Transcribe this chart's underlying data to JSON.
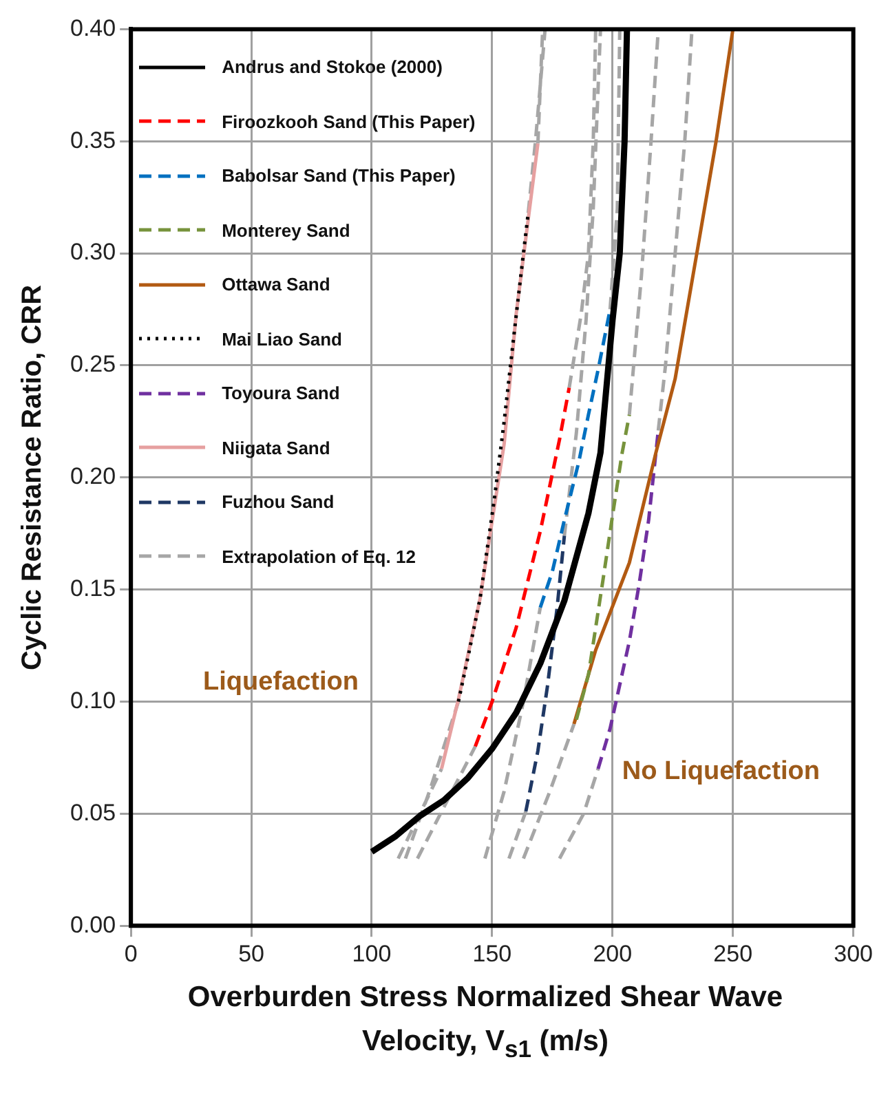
{
  "chart_data": {
    "type": "line",
    "xlabel": "Overburden Stress Normalized Shear Wave Velocity, V$_{s1}$ (m/s)",
    "ylabel": "Cyclic Resistance Ratio, CRR",
    "xlim": [
      0,
      300
    ],
    "xticks": [
      0,
      50,
      100,
      150,
      200,
      250,
      300
    ],
    "ylim": [
      0,
      0.4
    ],
    "yticks": [
      {
        "value": 0,
        "label": "0.00"
      },
      {
        "value": 0.05,
        "label": "0.05"
      },
      {
        "value": 0.1,
        "label": "0.10"
      },
      {
        "value": 0.15,
        "label": "0.15"
      },
      {
        "value": 0.2,
        "label": "0.20"
      },
      {
        "value": 0.25,
        "label": "0.25"
      },
      {
        "value": 0.3,
        "label": "0.30"
      },
      {
        "value": 0.35,
        "label": "0.35"
      },
      {
        "value": 0.4,
        "label": "0.40"
      }
    ],
    "grid": true,
    "legend": "top left",
    "annotations": [
      "Liquefaction",
      "No Liquefaction"
    ],
    "series": [
      {
        "name": "Andrus and Stokoe (2000)",
        "color": "#000000",
        "line_style": "solid",
        "x": [
          100,
          110,
          120,
          130,
          140,
          150,
          160,
          170,
          180,
          190,
          195,
          200,
          203,
          205,
          206
        ],
        "values": [
          0.033,
          0.04,
          0.049,
          0.056,
          0.066,
          0.079,
          0.095,
          0.117,
          0.145,
          0.184,
          0.211,
          0.27,
          0.3,
          0.35,
          0.4
        ]
      },
      {
        "name": "Firoozkooh Sand (This Paper)",
        "color": "#ff0000",
        "line_style": "dashed",
        "x": [
          143,
          150,
          160,
          170,
          178,
          182
        ],
        "values": [
          0.08,
          0.1,
          0.133,
          0.176,
          0.217,
          0.24
        ]
      },
      {
        "name": "Babolsar Sand (This Paper)",
        "color": "#0070c0",
        "line_style": "dashed",
        "x": [
          170,
          175,
          180,
          186,
          190,
          194,
          199
        ],
        "values": [
          0.142,
          0.158,
          0.181,
          0.207,
          0.228,
          0.248,
          0.275
        ]
      },
      {
        "name": "Monterey Sand",
        "color": "#77933c",
        "line_style": "dashed",
        "x": [
          185,
          190,
          196,
          200,
          204,
          207
        ],
        "values": [
          0.092,
          0.112,
          0.154,
          0.183,
          0.211,
          0.228
        ]
      },
      {
        "name": "Ottawa Sand",
        "color": "#b25a12",
        "line_style": "solid",
        "x": [
          184,
          193,
          207,
          218,
          226,
          235,
          243,
          250
        ],
        "values": [
          0.09,
          0.123,
          0.162,
          0.211,
          0.244,
          0.3,
          0.35,
          0.4
        ]
      },
      {
        "name": "Mai Liao Sand",
        "color": "#000000",
        "line_style": "dotted",
        "x": [
          136,
          140,
          145,
          151,
          155,
          159,
          163,
          165
        ],
        "values": [
          0.1,
          0.12,
          0.146,
          0.191,
          0.225,
          0.263,
          0.3,
          0.318
        ]
      },
      {
        "name": "Toyoura Sand",
        "color": "#7030a0",
        "line_style": "dashed",
        "x": [
          194,
          199,
          207,
          211,
          215,
          219
        ],
        "values": [
          0.07,
          0.088,
          0.127,
          0.152,
          0.181,
          0.221
        ]
      },
      {
        "name": "Niigata Sand",
        "color": "#e6a0a0",
        "line_style": "solid",
        "x": [
          129,
          136,
          145,
          155,
          160,
          169
        ],
        "values": [
          0.07,
          0.101,
          0.146,
          0.215,
          0.273,
          0.349
        ]
      },
      {
        "name": "Fuzhou Sand",
        "color": "#1f3864",
        "line_style": "dashed",
        "x": [
          164,
          169,
          173,
          177,
          180
        ],
        "values": [
          0.051,
          0.078,
          0.107,
          0.142,
          0.174
        ]
      },
      {
        "name": "Extrapolation of Eq. 12",
        "color": "#a6a6a6",
        "line_style": "dashed",
        "x": [
          165,
          168,
          172,
          null,
          169,
          171,
          null,
          182,
          187,
          190,
          192,
          193,
          null,
          180,
          185,
          189,
          192,
          195,
          null,
          199,
          202,
          203,
          null,
          207,
          212,
          216,
          219,
          null,
          219,
          222,
          226,
          230,
          233,
          null,
          111,
          120,
          129,
          null,
          114,
          124,
          136,
          null,
          119,
          130,
          143,
          null,
          147,
          155,
          163,
          170,
          null,
          157,
          164,
          null,
          163,
          174,
          184,
          null,
          178,
          188,
          194
        ],
        "values": [
          0.318,
          0.35,
          0.4,
          null,
          0.349,
          0.4,
          null,
          0.24,
          0.273,
          0.3,
          0.35,
          0.4,
          null,
          0.174,
          0.22,
          0.27,
          0.32,
          0.4,
          null,
          0.275,
          0.32,
          0.4,
          null,
          0.228,
          0.29,
          0.35,
          0.4,
          null,
          0.221,
          0.25,
          0.3,
          0.35,
          0.4,
          null,
          0.03,
          0.05,
          0.07,
          null,
          0.03,
          0.06,
          0.1,
          null,
          0.03,
          0.053,
          0.08,
          null,
          0.03,
          0.06,
          0.1,
          0.142,
          null,
          0.03,
          0.051,
          null,
          0.03,
          0.06,
          0.09,
          null,
          0.03,
          0.05,
          0.07
        ]
      }
    ]
  }
}
